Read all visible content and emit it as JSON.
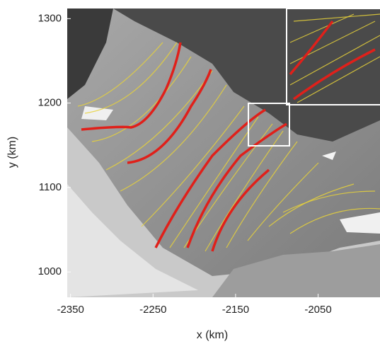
{
  "chart_data": {
    "type": "map",
    "xlabel": "x (km)",
    "ylabel": "y (km)",
    "xlim": [
      -2354,
      -1975
    ],
    "ylim": [
      970,
      1312
    ],
    "xticks": [
      -2350,
      -2250,
      -2150,
      -2050
    ],
    "yticks": [
      1000,
      1100,
      1200,
      1300
    ]
  }
}
